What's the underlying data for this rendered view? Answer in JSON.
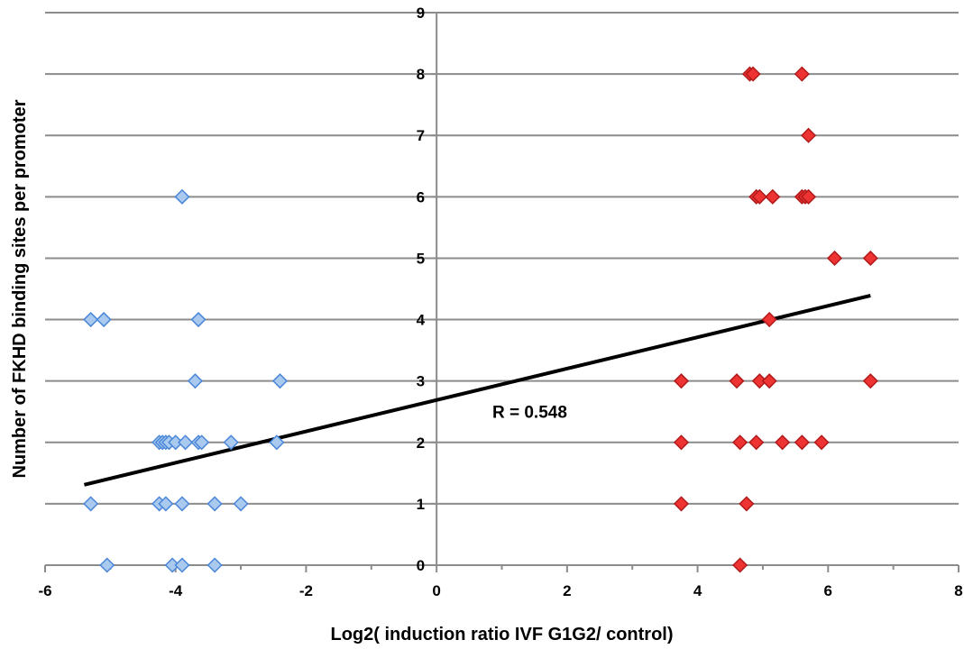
{
  "chart_data": {
    "type": "scatter",
    "title": "",
    "xlabel": "Log2( induction ratio IVF G1G2/ control)",
    "ylabel": "Number of FKHD binding sites per promoter",
    "xlim": [
      -6,
      8
    ],
    "ylim": [
      0,
      9
    ],
    "xticks": [
      -6,
      -4,
      -2,
      0,
      2,
      4,
      6,
      8
    ],
    "yticks": [
      0,
      1,
      2,
      3,
      4,
      5,
      6,
      7,
      8,
      9
    ],
    "grid": "horizontal",
    "legend": "none",
    "series": [
      {
        "color": "#a9c9ef",
        "stroke": "#4a86d8",
        "marker": "diamond",
        "points": [
          [
            -3.9,
            6
          ],
          [
            -5.3,
            4
          ],
          [
            -5.1,
            4
          ],
          [
            -3.65,
            4
          ],
          [
            -3.7,
            3
          ],
          [
            -2.4,
            3
          ],
          [
            -4.25,
            2
          ],
          [
            -4.2,
            2
          ],
          [
            -4.15,
            2
          ],
          [
            -4.1,
            2
          ],
          [
            -4.0,
            2
          ],
          [
            -3.85,
            2
          ],
          [
            -3.65,
            2
          ],
          [
            -3.6,
            2
          ],
          [
            -3.15,
            2
          ],
          [
            -2.45,
            2
          ],
          [
            -5.3,
            1
          ],
          [
            -4.25,
            1
          ],
          [
            -4.15,
            1
          ],
          [
            -3.9,
            1
          ],
          [
            -3.4,
            1
          ],
          [
            -3.0,
            1
          ],
          [
            -5.05,
            0
          ],
          [
            -4.05,
            0
          ],
          [
            -3.9,
            0
          ],
          [
            -3.4,
            0
          ]
        ]
      },
      {
        "color": "#ee3333",
        "stroke": "#b11a1a",
        "marker": "diamond",
        "points": [
          [
            4.8,
            8
          ],
          [
            4.85,
            8
          ],
          [
            5.6,
            8
          ],
          [
            5.7,
            7
          ],
          [
            4.9,
            6
          ],
          [
            4.95,
            6
          ],
          [
            5.15,
            6
          ],
          [
            5.6,
            6
          ],
          [
            5.65,
            6
          ],
          [
            5.7,
            6
          ],
          [
            6.1,
            5
          ],
          [
            6.65,
            5
          ],
          [
            5.1,
            4
          ],
          [
            3.75,
            3
          ],
          [
            4.6,
            3
          ],
          [
            4.95,
            3
          ],
          [
            5.1,
            3
          ],
          [
            6.65,
            3
          ],
          [
            3.75,
            2
          ],
          [
            4.65,
            2
          ],
          [
            4.9,
            2
          ],
          [
            5.3,
            2
          ],
          [
            5.6,
            2
          ],
          [
            5.9,
            2
          ],
          [
            3.75,
            1
          ],
          [
            4.75,
            1
          ],
          [
            4.65,
            0
          ]
        ]
      }
    ],
    "trendline": {
      "x": [
        -5.4,
        6.65
      ],
      "y": [
        1.31,
        4.39
      ],
      "color": "#000000"
    },
    "annotation": {
      "text": "R = 0.548",
      "x": 1.2,
      "y": 2.5
    }
  }
}
